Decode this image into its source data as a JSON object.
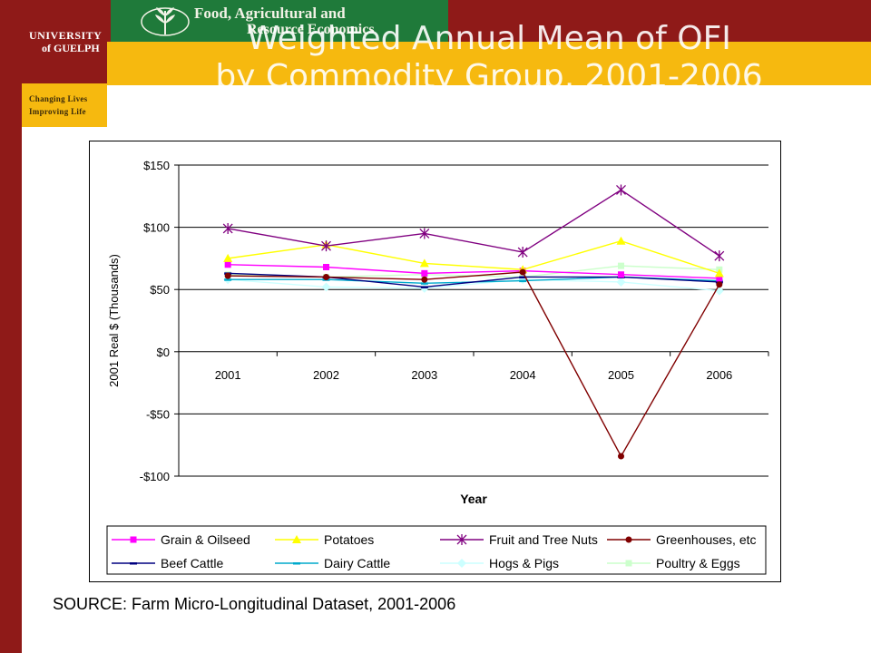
{
  "header": {
    "university": [
      "UNIVERSITY",
      "of GUELPH"
    ],
    "tagline": [
      "Changing Lives",
      "Improving Life"
    ],
    "department": [
      "Food, Agricultural and",
      "Resource Economics"
    ],
    "title": "Weighted Annual Mean of OFI by Commodity Group, 2001-2006",
    "title_lines": [
      "Weighted Annual Mean of OFI",
      "by Commodity Group, 2001-2006"
    ],
    "colors": {
      "maroon": "#8f1a18",
      "gold": "#f6b90f",
      "green": "#1f7a3a"
    }
  },
  "chart_data": {
    "type": "line",
    "xlabel": "Year",
    "ylabel": "2001 Real $ (Thousands)",
    "categories": [
      "2001",
      "2002",
      "2003",
      "2004",
      "2005",
      "2006"
    ],
    "ylim": [
      -100,
      150
    ],
    "yticks": [
      150,
      100,
      50,
      0,
      -50,
      -100
    ],
    "ytick_labels": [
      "$150",
      "$100",
      "$50",
      "$0",
      "-$50",
      "-$100"
    ],
    "grid": "horizontal",
    "legend": "bottom",
    "series": [
      {
        "name": "Grain & Oilseed",
        "color": "#ff00ff",
        "marker": "square",
        "values": [
          70,
          68,
          63,
          65,
          62,
          59
        ]
      },
      {
        "name": "Potatoes",
        "color": "#ffff00",
        "marker": "triangle",
        "values": [
          75,
          86,
          71,
          66,
          89,
          63
        ]
      },
      {
        "name": "Fruit and Tree Nuts",
        "color": "#800080",
        "marker": "star",
        "values": [
          99,
          85,
          95,
          80,
          130,
          77
        ]
      },
      {
        "name": "Greenhouses, etc",
        "color": "#800000",
        "marker": "circle",
        "values": [
          61,
          60,
          58,
          64,
          -84,
          54
        ]
      },
      {
        "name": "Beef Cattle",
        "color": "#000080",
        "marker": "dash",
        "values": [
          63,
          60,
          52,
          60,
          60,
          56
        ]
      },
      {
        "name": "Dairy Cattle",
        "color": "#00aacc",
        "marker": "dash",
        "values": [
          58,
          58,
          55,
          57,
          60,
          57
        ]
      },
      {
        "name": "Hogs & Pigs",
        "color": "#ccffff",
        "marker": "diamond",
        "values": [
          58,
          52,
          51,
          58,
          56,
          49
        ]
      },
      {
        "name": "Poultry & Eggs",
        "color": "#ccffcc",
        "marker": "square",
        "values": [
          62,
          60,
          62,
          60,
          69,
          66
        ]
      }
    ]
  },
  "source": "SOURCE: Farm Micro-Longitudinal Dataset, 2001-2006"
}
